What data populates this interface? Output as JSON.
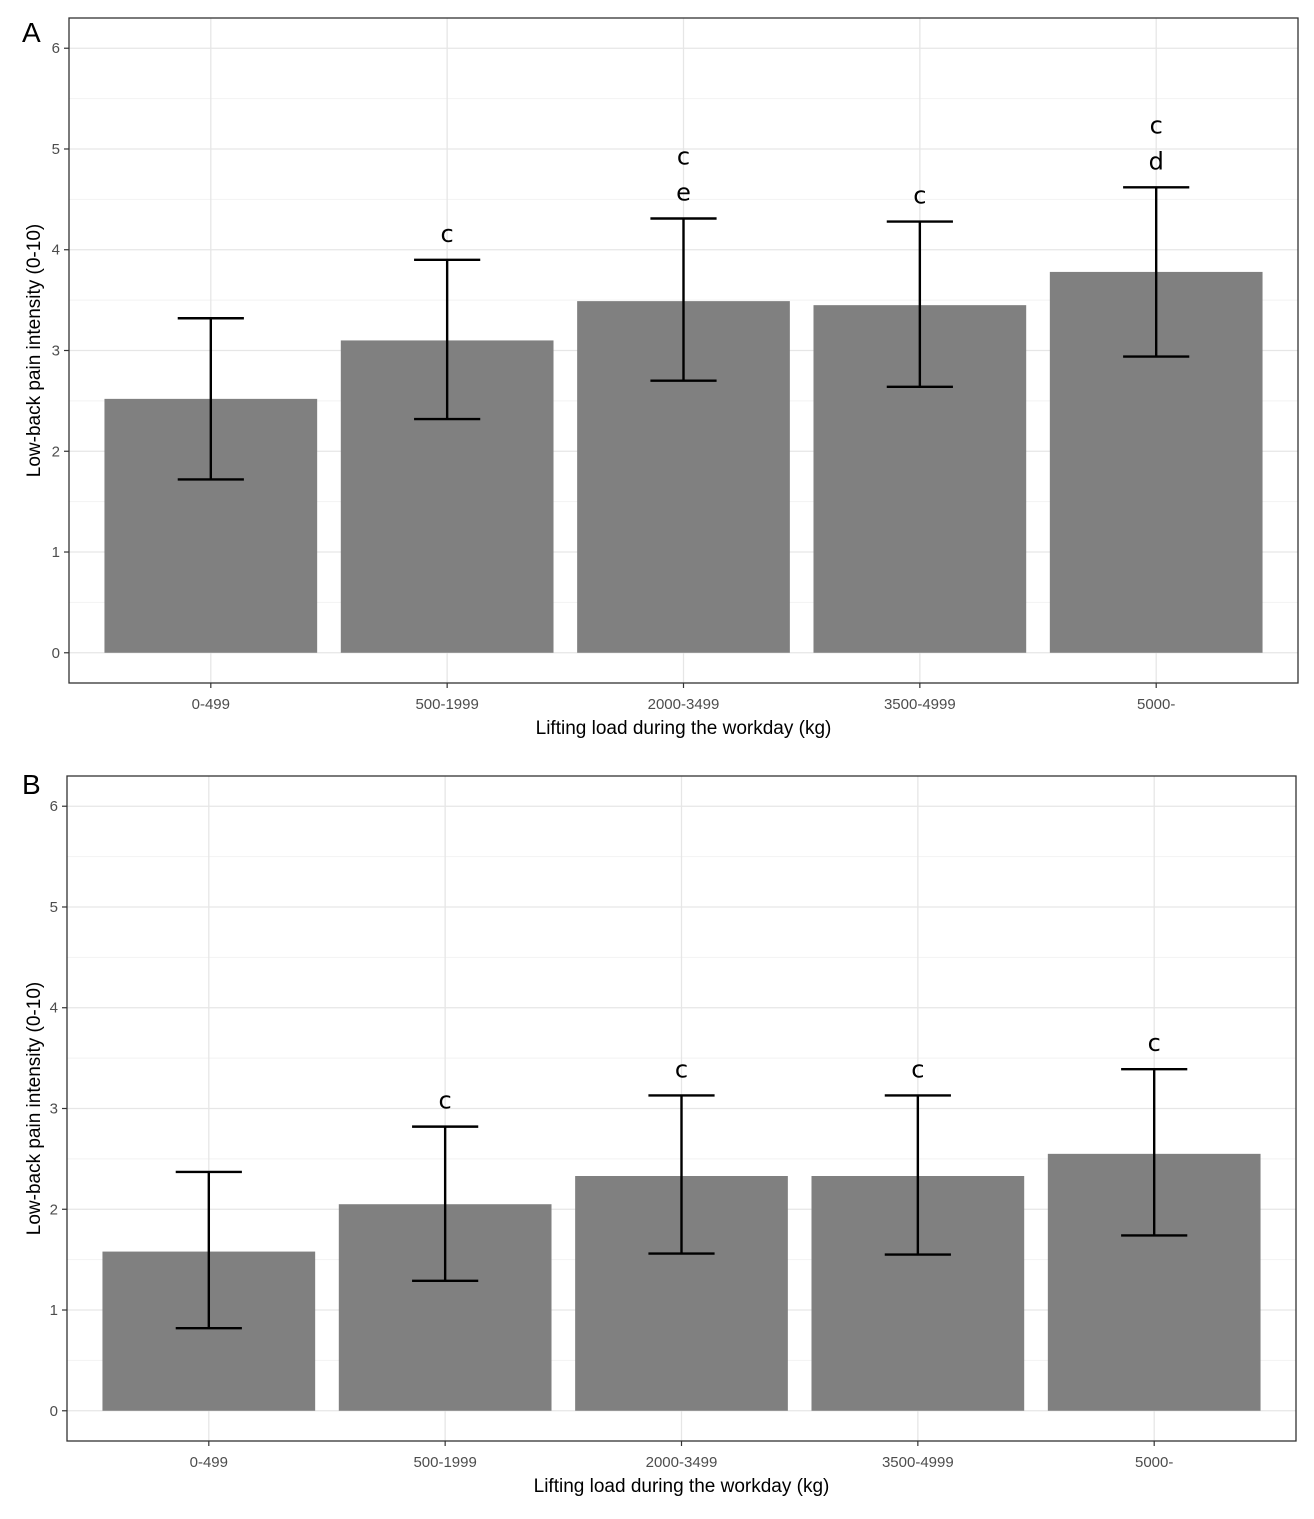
{
  "chart_data": [
    {
      "type": "bar",
      "panel_label": "A",
      "categories": [
        "0-499",
        "500-1999",
        "2000-3499",
        "3500-4999",
        "5000-"
      ],
      "values": [
        2.52,
        3.1,
        3.49,
        3.45,
        3.78
      ],
      "error_low": [
        1.72,
        2.32,
        2.7,
        2.64,
        2.94
      ],
      "error_high": [
        3.32,
        3.9,
        4.31,
        4.28,
        4.62
      ],
      "annotations": [
        [],
        [
          "c"
        ],
        [
          "c",
          "e"
        ],
        [
          "c"
        ],
        [
          "c",
          "d"
        ]
      ],
      "xlabel": "Lifting load during the workday (kg)",
      "ylabel": "Low-back pain intensity (0-10)",
      "ylim": [
        -0.3,
        6.3
      ],
      "yticks": [
        0,
        1,
        2,
        3,
        4,
        5,
        6
      ],
      "grid": true,
      "bar_color": "#808080"
    },
    {
      "type": "bar",
      "panel_label": "B",
      "categories": [
        "0-499",
        "500-1999",
        "2000-3499",
        "3500-4999",
        "5000-"
      ],
      "values": [
        1.58,
        2.05,
        2.33,
        2.33,
        2.55
      ],
      "error_low": [
        0.82,
        1.29,
        1.56,
        1.55,
        1.74
      ],
      "error_high": [
        2.37,
        2.82,
        3.13,
        3.13,
        3.39
      ],
      "annotations": [
        [],
        [
          "c"
        ],
        [
          "c"
        ],
        [
          "c"
        ],
        [
          "c"
        ]
      ],
      "xlabel": "Lifting load during the workday (kg)",
      "ylabel": "Low-back pain intensity (0-10)",
      "ylim": [
        -0.3,
        6.3
      ],
      "yticks": [
        0,
        1,
        2,
        3,
        4,
        5,
        6
      ],
      "grid": true,
      "bar_color": "#808080"
    }
  ]
}
